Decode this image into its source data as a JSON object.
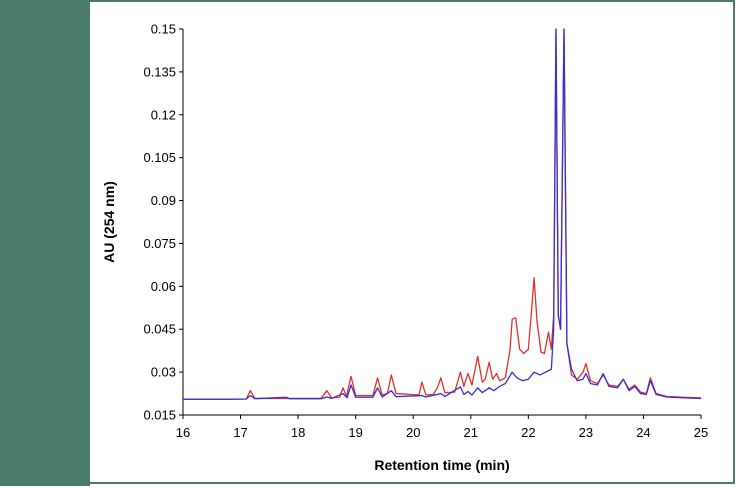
{
  "colors": {
    "frame": "#4a7a6a",
    "series_red": "#e0302a",
    "series_blue": "#3a2fd6"
  },
  "chart_data": {
    "type": "line",
    "title": "",
    "xlabel": "Retention time  (min)",
    "ylabel": "AU (254 nm)",
    "xlim": [
      16,
      25
    ],
    "ylim": [
      0.015,
      0.15
    ],
    "x_ticks": [
      "16",
      "17",
      "18",
      "19",
      "20",
      "21",
      "22",
      "23",
      "24",
      "25"
    ],
    "y_ticks": [
      "0.015",
      "0.03",
      "0.045",
      "0.06",
      "0.075",
      "0.09",
      "0.105",
      "0.12",
      "0.135",
      "0.15"
    ],
    "grid": false,
    "legend": "none",
    "series": [
      {
        "color": "#e0302a",
        "points": [
          [
            16.0,
            0.0205
          ],
          [
            16.8,
            0.0205
          ],
          [
            17.1,
            0.0206
          ],
          [
            17.17,
            0.0235
          ],
          [
            17.25,
            0.0208
          ],
          [
            17.8,
            0.0208
          ],
          [
            18.4,
            0.0208
          ],
          [
            18.5,
            0.0235
          ],
          [
            18.58,
            0.021
          ],
          [
            18.72,
            0.0212
          ],
          [
            18.78,
            0.0245
          ],
          [
            18.84,
            0.0215
          ],
          [
            18.92,
            0.0285
          ],
          [
            19.0,
            0.0218
          ],
          [
            19.3,
            0.0218
          ],
          [
            19.38,
            0.028
          ],
          [
            19.46,
            0.022
          ],
          [
            19.55,
            0.0225
          ],
          [
            19.62,
            0.029
          ],
          [
            19.7,
            0.0225
          ],
          [
            20.1,
            0.022
          ],
          [
            20.15,
            0.0265
          ],
          [
            20.22,
            0.022
          ],
          [
            20.35,
            0.0222
          ],
          [
            20.42,
            0.0245
          ],
          [
            20.48,
            0.028
          ],
          [
            20.55,
            0.0228
          ],
          [
            20.72,
            0.023
          ],
          [
            20.82,
            0.03
          ],
          [
            20.88,
            0.025
          ],
          [
            20.95,
            0.0295
          ],
          [
            21.02,
            0.0255
          ],
          [
            21.12,
            0.0355
          ],
          [
            21.2,
            0.0265
          ],
          [
            21.25,
            0.0275
          ],
          [
            21.32,
            0.0335
          ],
          [
            21.38,
            0.0275
          ],
          [
            21.45,
            0.0295
          ],
          [
            21.5,
            0.027
          ],
          [
            21.6,
            0.028
          ],
          [
            21.68,
            0.0375
          ],
          [
            21.72,
            0.0485
          ],
          [
            21.78,
            0.049
          ],
          [
            21.85,
            0.038
          ],
          [
            21.92,
            0.0365
          ],
          [
            22.0,
            0.038
          ],
          [
            22.05,
            0.05
          ],
          [
            22.1,
            0.063
          ],
          [
            22.15,
            0.048
          ],
          [
            22.22,
            0.037
          ],
          [
            22.28,
            0.0365
          ],
          [
            22.35,
            0.044
          ],
          [
            22.4,
            0.038
          ],
          [
            22.44,
            0.05
          ],
          [
            22.48,
            0.15
          ],
          [
            22.52,
            0.05
          ],
          [
            22.56,
            0.045
          ],
          [
            22.62,
            0.15
          ],
          [
            22.67,
            0.04
          ],
          [
            22.75,
            0.029
          ],
          [
            22.85,
            0.0275
          ],
          [
            22.95,
            0.03
          ],
          [
            23.0,
            0.033
          ],
          [
            23.08,
            0.027
          ],
          [
            23.2,
            0.026
          ],
          [
            23.3,
            0.029
          ],
          [
            23.4,
            0.0255
          ],
          [
            23.55,
            0.025
          ],
          [
            23.65,
            0.0275
          ],
          [
            23.75,
            0.024
          ],
          [
            23.85,
            0.0255
          ],
          [
            23.95,
            0.023
          ],
          [
            24.05,
            0.0225
          ],
          [
            24.12,
            0.028
          ],
          [
            24.22,
            0.0225
          ],
          [
            24.4,
            0.0215
          ],
          [
            24.7,
            0.0212
          ],
          [
            25.0,
            0.021
          ]
        ]
      },
      {
        "color": "#3a2fd6",
        "points": [
          [
            16.0,
            0.0205
          ],
          [
            16.8,
            0.0205
          ],
          [
            17.1,
            0.0206
          ],
          [
            17.17,
            0.0218
          ],
          [
            17.25,
            0.0207
          ],
          [
            17.8,
            0.0212
          ],
          [
            17.85,
            0.0207
          ],
          [
            18.4,
            0.0207
          ],
          [
            18.5,
            0.0213
          ],
          [
            18.58,
            0.0208
          ],
          [
            18.78,
            0.0225
          ],
          [
            18.85,
            0.021
          ],
          [
            18.92,
            0.0255
          ],
          [
            19.0,
            0.0212
          ],
          [
            19.3,
            0.0212
          ],
          [
            19.38,
            0.0245
          ],
          [
            19.46,
            0.0213
          ],
          [
            19.62,
            0.0235
          ],
          [
            19.7,
            0.0214
          ],
          [
            20.15,
            0.0218
          ],
          [
            20.22,
            0.0213
          ],
          [
            20.48,
            0.0225
          ],
          [
            20.55,
            0.0215
          ],
          [
            20.82,
            0.0248
          ],
          [
            20.88,
            0.0222
          ],
          [
            20.95,
            0.0232
          ],
          [
            21.02,
            0.022
          ],
          [
            21.12,
            0.0245
          ],
          [
            21.2,
            0.0228
          ],
          [
            21.32,
            0.0245
          ],
          [
            21.4,
            0.0235
          ],
          [
            21.5,
            0.025
          ],
          [
            21.6,
            0.026
          ],
          [
            21.72,
            0.03
          ],
          [
            21.8,
            0.028
          ],
          [
            21.9,
            0.027
          ],
          [
            22.0,
            0.0275
          ],
          [
            22.1,
            0.03
          ],
          [
            22.2,
            0.029
          ],
          [
            22.3,
            0.03
          ],
          [
            22.4,
            0.031
          ],
          [
            22.44,
            0.045
          ],
          [
            22.48,
            0.15
          ],
          [
            22.52,
            0.05
          ],
          [
            22.56,
            0.045
          ],
          [
            22.62,
            0.15
          ],
          [
            22.67,
            0.04
          ],
          [
            22.75,
            0.031
          ],
          [
            22.85,
            0.027
          ],
          [
            22.95,
            0.0275
          ],
          [
            23.0,
            0.0295
          ],
          [
            23.08,
            0.026
          ],
          [
            23.2,
            0.0255
          ],
          [
            23.3,
            0.0295
          ],
          [
            23.4,
            0.025
          ],
          [
            23.55,
            0.0245
          ],
          [
            23.65,
            0.0275
          ],
          [
            23.75,
            0.0235
          ],
          [
            23.85,
            0.025
          ],
          [
            23.95,
            0.0225
          ],
          [
            24.05,
            0.0222
          ],
          [
            24.12,
            0.027
          ],
          [
            24.22,
            0.0222
          ],
          [
            24.4,
            0.0213
          ],
          [
            24.7,
            0.021
          ],
          [
            25.0,
            0.0208
          ]
        ]
      }
    ]
  }
}
